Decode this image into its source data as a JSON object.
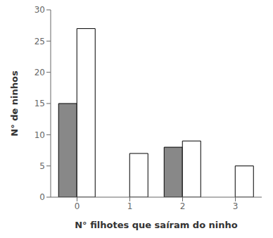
{
  "chart_data": {
    "type": "bar",
    "xlabel": "N° filhotes que saíram do ninho",
    "ylabel": "N° de ninhos",
    "categories": [
      "0",
      "1",
      "2",
      "3"
    ],
    "series": [
      {
        "color": "#888888",
        "values": [
          15,
          0,
          8,
          0
        ]
      },
      {
        "color": "#ffffff",
        "values": [
          27,
          7,
          9,
          5
        ]
      }
    ],
    "ylim": [
      0,
      30
    ],
    "yticks": [
      0,
      5,
      10,
      15,
      20,
      25,
      30
    ],
    "grid": false
  }
}
